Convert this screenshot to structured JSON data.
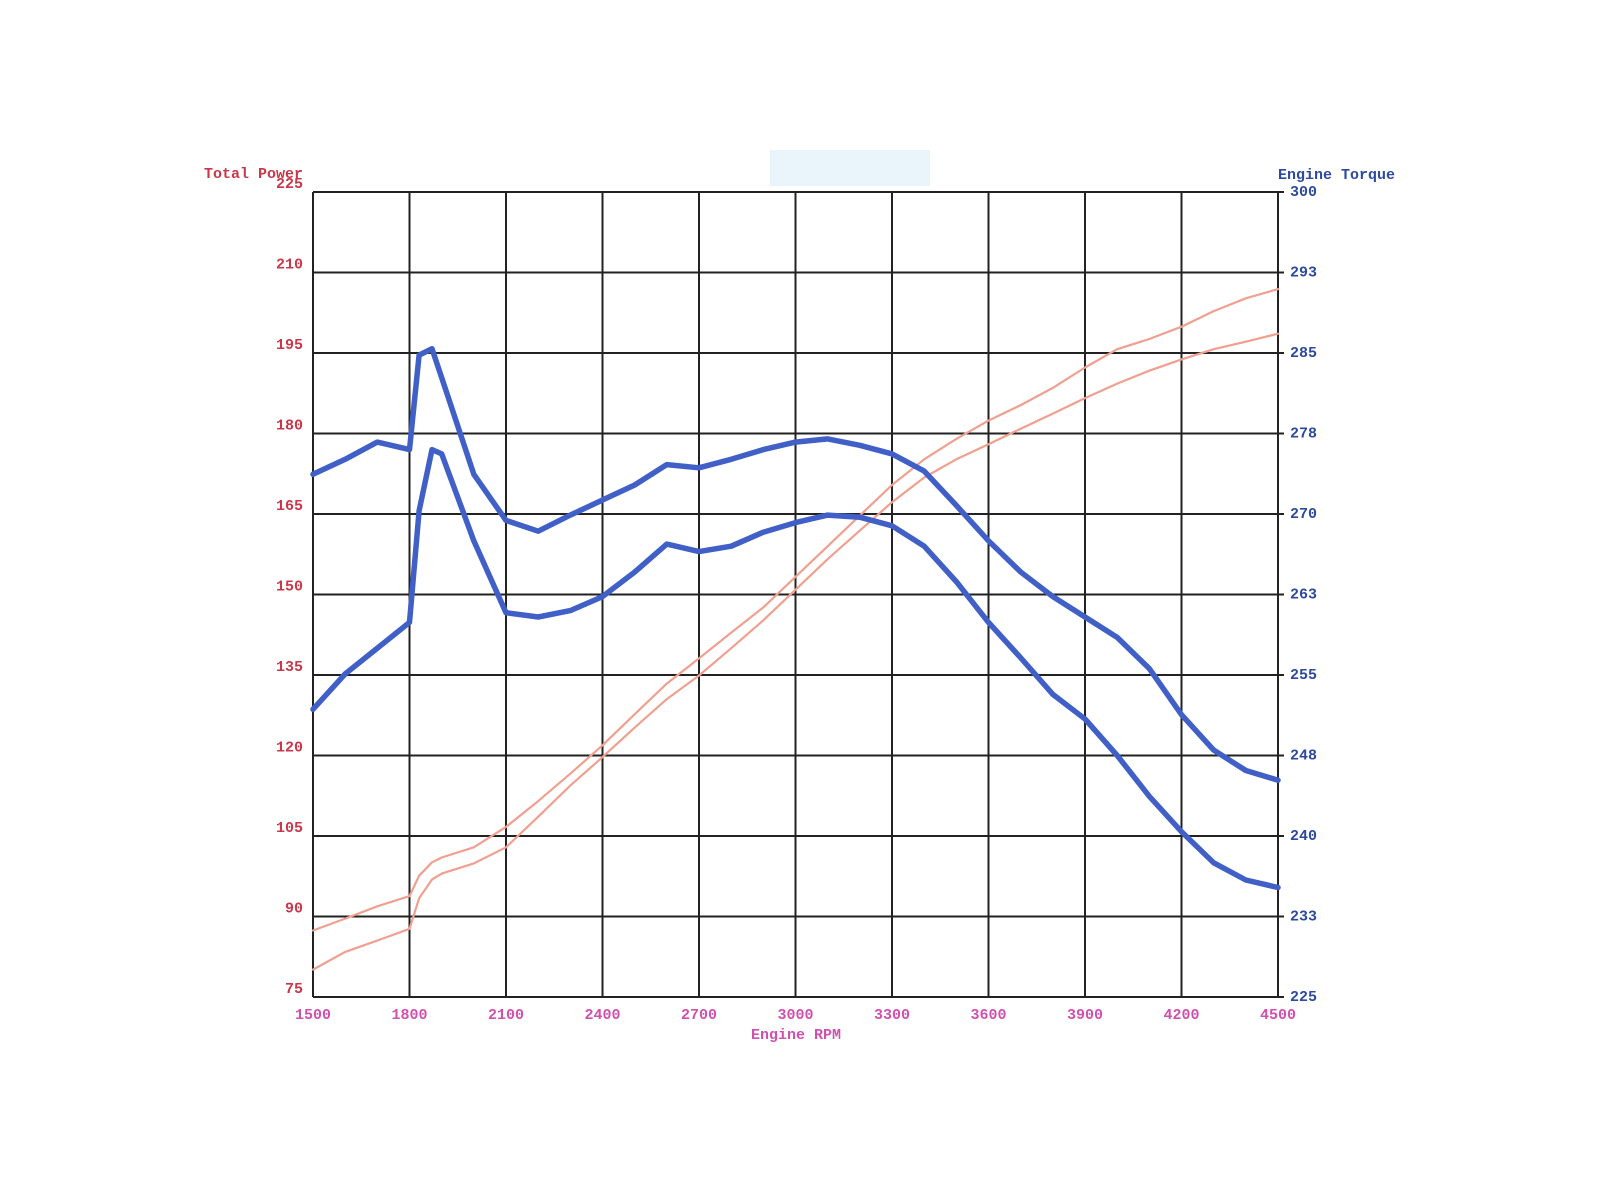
{
  "chart_data": {
    "type": "line",
    "y_label": "Total Power",
    "y2_label": "Engine Torque",
    "x_label": "Engine RPM",
    "x": [
      1500,
      1600,
      1700,
      1800,
      1830,
      1870,
      1900,
      2000,
      2100,
      2200,
      2300,
      2400,
      2500,
      2600,
      2700,
      2800,
      2900,
      3000,
      3100,
      3200,
      3300,
      3400,
      3500,
      3600,
      3700,
      3800,
      3900,
      4000,
      4100,
      4200,
      4300,
      4400,
      4500
    ],
    "xlim": [
      1500,
      4500
    ],
    "xticks": [
      1500,
      1800,
      2100,
      2400,
      2700,
      3000,
      3300,
      3600,
      3900,
      4200,
      4500
    ],
    "ylim": [
      75,
      225
    ],
    "yticks": [
      75,
      90,
      105,
      120,
      135,
      150,
      165,
      180,
      195,
      210,
      225
    ],
    "y2lim": [
      225,
      300
    ],
    "y2ticks": [
      225,
      {
        "value": 232.5,
        "label": "233"
      },
      240,
      {
        "value": 247.5,
        "label": "248"
      },
      255,
      {
        "value": 262.5,
        "label": "263"
      },
      270,
      {
        "value": 277.5,
        "label": "278"
      },
      285,
      {
        "value": 292.5,
        "label": "293"
      },
      300
    ],
    "grid": true,
    "series": [
      {
        "color": "#f0a090",
        "values": [
          87.4,
          89.6,
          91.9,
          93.8,
          97.6,
          100.1,
          101.0,
          102.9,
          106.7,
          111.5,
          116.6,
          121.9,
          127.7,
          133.4,
          138.1,
          142.9,
          147.6,
          153.3,
          159.0,
          164.7,
          170.4,
          175.2,
          179.0,
          182.4,
          185.3,
          188.5,
          192.3,
          195.7,
          197.6,
          199.9,
          202.8,
          205.2,
          206.9
        ]
      },
      {
        "color": "#f0a090",
        "values": [
          80.1,
          83.4,
          85.5,
          87.7,
          93.4,
          96.9,
          98.0,
          99.9,
          102.9,
          108.6,
          114.4,
          119.7,
          125.2,
          130.5,
          134.9,
          140.0,
          145.2,
          150.9,
          156.6,
          161.9,
          167.2,
          171.8,
          175.2,
          178.0,
          180.9,
          183.7,
          186.6,
          189.3,
          191.7,
          193.8,
          195.7,
          197.1,
          198.6
        ]
      },
      {
        "color": "#4060c8",
        "axis": "y2",
        "values": [
          273.7,
          275.1,
          276.7,
          276.0,
          284.8,
          285.4,
          282.7,
          273.7,
          269.4,
          268.4,
          269.9,
          271.3,
          272.7,
          274.6,
          274.3,
          275.1,
          276.0,
          276.7,
          277.0,
          276.4,
          275.6,
          274.0,
          270.8,
          267.5,
          264.6,
          262.3,
          260.4,
          258.5,
          255.6,
          251.3,
          248.0,
          246.1,
          245.2
        ]
      },
      {
        "color": "#4060c8",
        "axis": "y2",
        "values": [
          251.8,
          255.1,
          257.5,
          259.9,
          270.3,
          276.0,
          275.6,
          267.5,
          260.8,
          260.4,
          261.0,
          262.3,
          264.6,
          267.2,
          266.5,
          267.0,
          268.3,
          269.2,
          269.9,
          269.7,
          268.9,
          267.0,
          263.7,
          259.9,
          256.6,
          253.2,
          250.9,
          247.5,
          243.7,
          240.4,
          237.5,
          235.9,
          235.2
        ]
      }
    ]
  }
}
